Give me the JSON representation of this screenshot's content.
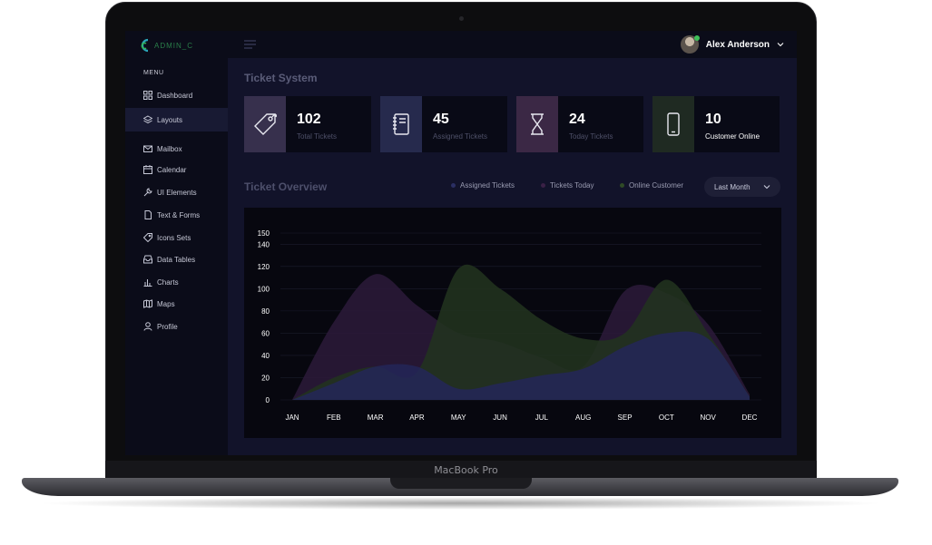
{
  "brand": {
    "logo_text": "ADMIN_C",
    "device_label": "MacBook Pro"
  },
  "sidebar": {
    "menu_heading": "MENU",
    "items": [
      {
        "label": "Dashboard",
        "icon": "grid-icon"
      },
      {
        "label": "Layouts",
        "icon": "layers-icon",
        "active": true
      },
      {
        "label": "Mailbox",
        "icon": "mail-icon"
      },
      {
        "label": "Calendar",
        "icon": "calendar-icon"
      },
      {
        "label": "UI Elements",
        "icon": "wrench-icon"
      },
      {
        "label": "Text & Forms",
        "icon": "document-icon"
      },
      {
        "label": "Icons Sets",
        "icon": "tag-icon"
      },
      {
        "label": "Data Tables",
        "icon": "inbox-icon"
      },
      {
        "label": "Charts",
        "icon": "bar-chart-icon"
      },
      {
        "label": "Maps",
        "icon": "map-icon"
      },
      {
        "label": "Profile",
        "icon": "user-icon"
      }
    ]
  },
  "header": {
    "user_name": "Alex Anderson"
  },
  "page": {
    "title": "Ticket System"
  },
  "stats": [
    {
      "value": "102",
      "label": "Total Tickets",
      "icon": "price-tag-icon",
      "tile_color": "#37304d"
    },
    {
      "value": "45",
      "label": "Assigned Tickets",
      "icon": "notebook-icon",
      "tile_color": "#262a4d"
    },
    {
      "value": "24",
      "label": "Today Tickets",
      "icon": "hourglass-icon",
      "tile_color": "#3b2845"
    },
    {
      "value": "10",
      "label": "Customer Online",
      "icon": "mobile-icon",
      "tile_color": "#1f2a22"
    }
  ],
  "overview": {
    "title": "Ticket Overview",
    "legend": [
      {
        "label": "Assigned Tickets",
        "color": "#2b2f63"
      },
      {
        "label": "Tickets Today",
        "color": "#3a2146"
      },
      {
        "label": "Online Customer",
        "color": "#2f4a26"
      }
    ],
    "period": "Last Month"
  },
  "chart_data": {
    "type": "area",
    "categories": [
      "JAN",
      "FEB",
      "MAR",
      "APR",
      "MAY",
      "JUN",
      "JUL",
      "AUG",
      "SEP",
      "OCT",
      "NOV",
      "DEC"
    ],
    "ylim": [
      0,
      150
    ],
    "yticks": [
      0,
      20,
      40,
      60,
      80,
      100,
      120,
      140,
      150
    ],
    "grid": true,
    "series": [
      {
        "name": "Tickets Today",
        "color": "#2c1a3a",
        "values": [
          0,
          70,
          113,
          85,
          60,
          52,
          38,
          30,
          98,
          96,
          68,
          5
        ]
      },
      {
        "name": "Online Customer",
        "color": "#22341f",
        "values": [
          0,
          20,
          30,
          25,
          118,
          100,
          72,
          55,
          60,
          108,
          60,
          3
        ]
      },
      {
        "name": "Assigned Tickets",
        "color": "#232658",
        "values": [
          0,
          15,
          30,
          30,
          10,
          15,
          22,
          28,
          48,
          60,
          55,
          3
        ]
      }
    ]
  }
}
